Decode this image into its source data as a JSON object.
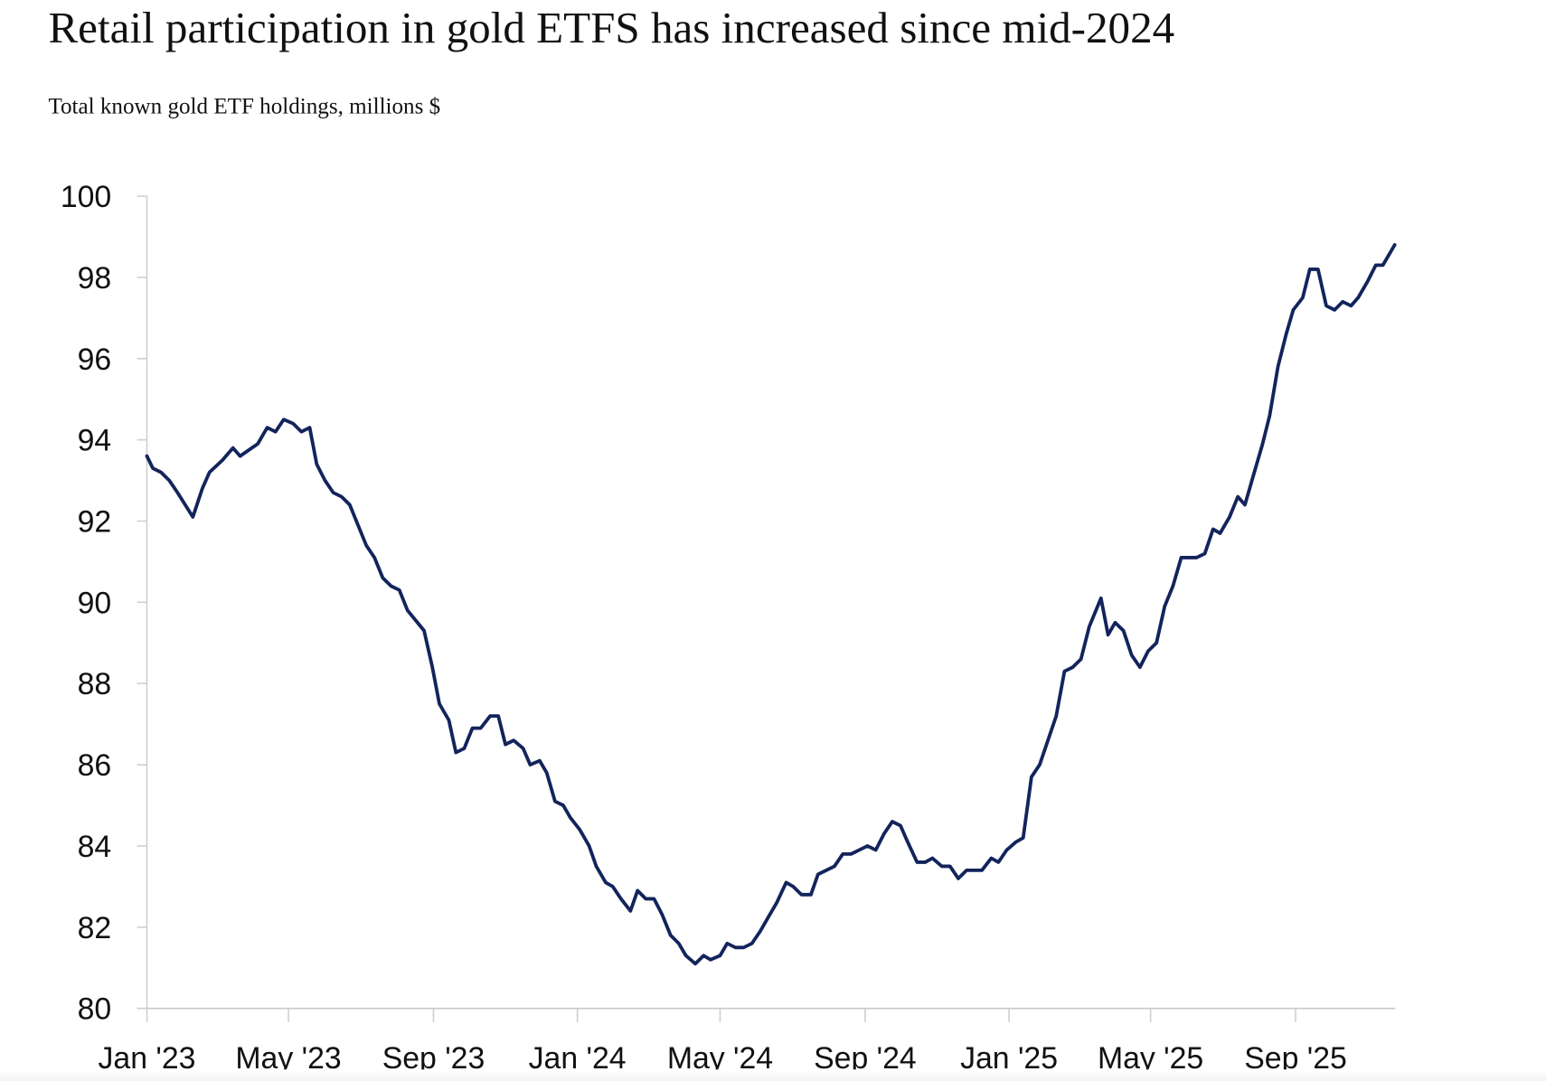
{
  "chart_data": {
    "type": "line",
    "title": "Retail participation in gold ETFS has increased since mid-2024",
    "subtitle": "Total known gold ETF holdings, millions $",
    "xlabel": "",
    "ylabel": "",
    "ylim": [
      80,
      100
    ],
    "yticks": [
      "100",
      "98",
      "96",
      "94",
      "92",
      "90",
      "88",
      "86",
      "84",
      "82",
      "80"
    ],
    "xticks": [
      {
        "label": "Jan '23",
        "date": "2023-01-01"
      },
      {
        "label": "May '23",
        "date": "2023-05-01"
      },
      {
        "label": "Sep '23",
        "date": "2023-09-01"
      },
      {
        "label": "Jan '24",
        "date": "2024-01-01"
      },
      {
        "label": "May '24",
        "date": "2024-05-01"
      },
      {
        "label": "Sep '24",
        "date": "2024-09-01"
      },
      {
        "label": "Jan '25",
        "date": "2025-01-01"
      },
      {
        "label": "May '25",
        "date": "2025-05-01"
      },
      {
        "label": "Sep '25",
        "date": "2025-09-01"
      }
    ],
    "grid": false,
    "line_color": "#13245c",
    "series": [
      {
        "points": [
          [
            "2023-01-01",
            93.6
          ],
          [
            "2023-01-06",
            93.3
          ],
          [
            "2023-01-13",
            93.2
          ],
          [
            "2023-01-20",
            93.0
          ],
          [
            "2023-01-27",
            92.7
          ],
          [
            "2023-02-09",
            92.1
          ],
          [
            "2023-02-17",
            92.8
          ],
          [
            "2023-02-23",
            93.2
          ],
          [
            "2023-03-06",
            93.5
          ],
          [
            "2023-03-15",
            93.8
          ],
          [
            "2023-03-21",
            93.6
          ],
          [
            "2023-04-05",
            93.9
          ],
          [
            "2023-04-13",
            94.3
          ],
          [
            "2023-04-20",
            94.2
          ],
          [
            "2023-04-27",
            94.5
          ],
          [
            "2023-05-05",
            94.4
          ],
          [
            "2023-05-12",
            94.2
          ],
          [
            "2023-05-19",
            94.3
          ],
          [
            "2023-05-25",
            93.4
          ],
          [
            "2023-06-01",
            93.0
          ],
          [
            "2023-06-08",
            92.7
          ],
          [
            "2023-06-15",
            92.6
          ],
          [
            "2023-06-22",
            92.4
          ],
          [
            "2023-06-29",
            91.9
          ],
          [
            "2023-07-06",
            91.4
          ],
          [
            "2023-07-13",
            91.1
          ],
          [
            "2023-07-20",
            90.6
          ],
          [
            "2023-07-27",
            90.4
          ],
          [
            "2023-08-03",
            90.3
          ],
          [
            "2023-08-10",
            89.8
          ],
          [
            "2023-08-24",
            89.3
          ],
          [
            "2023-08-31",
            88.4
          ],
          [
            "2023-09-06",
            87.5
          ],
          [
            "2023-09-14",
            87.1
          ],
          [
            "2023-09-20",
            86.3
          ],
          [
            "2023-09-27",
            86.4
          ],
          [
            "2023-10-04",
            86.9
          ],
          [
            "2023-10-11",
            86.9
          ],
          [
            "2023-10-19",
            87.2
          ],
          [
            "2023-10-26",
            87.2
          ],
          [
            "2023-11-01",
            86.5
          ],
          [
            "2023-11-08",
            86.6
          ],
          [
            "2023-11-16",
            86.4
          ],
          [
            "2023-11-22",
            86.0
          ],
          [
            "2023-11-30",
            86.1
          ],
          [
            "2023-12-06",
            85.8
          ],
          [
            "2023-12-13",
            85.1
          ],
          [
            "2023-12-20",
            85.0
          ],
          [
            "2023-12-26",
            84.7
          ],
          [
            "2024-01-03",
            84.4
          ],
          [
            "2024-01-11",
            84.0
          ],
          [
            "2024-01-17",
            83.5
          ],
          [
            "2024-01-25",
            83.1
          ],
          [
            "2024-01-31",
            83.0
          ],
          [
            "2024-02-07",
            82.7
          ],
          [
            "2024-02-15",
            82.4
          ],
          [
            "2024-02-21",
            82.9
          ],
          [
            "2024-02-28",
            82.7
          ],
          [
            "2024-03-06",
            82.7
          ],
          [
            "2024-03-13",
            82.3
          ],
          [
            "2024-03-20",
            81.8
          ],
          [
            "2024-03-27",
            81.6
          ],
          [
            "2024-04-02",
            81.3
          ],
          [
            "2024-04-10",
            81.1
          ],
          [
            "2024-04-17",
            81.3
          ],
          [
            "2024-04-23",
            81.2
          ],
          [
            "2024-05-01",
            81.3
          ],
          [
            "2024-05-07",
            81.6
          ],
          [
            "2024-05-14",
            81.5
          ],
          [
            "2024-05-21",
            81.5
          ],
          [
            "2024-05-28",
            81.6
          ],
          [
            "2024-06-04",
            81.9
          ],
          [
            "2024-06-12",
            82.3
          ],
          [
            "2024-06-18",
            82.6
          ],
          [
            "2024-06-26",
            83.1
          ],
          [
            "2024-07-02",
            83.0
          ],
          [
            "2024-07-09",
            82.8
          ],
          [
            "2024-07-17",
            82.8
          ],
          [
            "2024-07-23",
            83.3
          ],
          [
            "2024-07-30",
            83.4
          ],
          [
            "2024-08-06",
            83.5
          ],
          [
            "2024-08-13",
            83.8
          ],
          [
            "2024-08-20",
            83.8
          ],
          [
            "2024-08-27",
            83.9
          ],
          [
            "2024-09-03",
            84.0
          ],
          [
            "2024-09-10",
            83.9
          ],
          [
            "2024-09-17",
            84.3
          ],
          [
            "2024-09-24",
            84.6
          ],
          [
            "2024-10-01",
            84.5
          ],
          [
            "2024-10-07",
            84.1
          ],
          [
            "2024-10-15",
            83.6
          ],
          [
            "2024-10-22",
            83.6
          ],
          [
            "2024-10-28",
            83.7
          ],
          [
            "2024-11-05",
            83.5
          ],
          [
            "2024-11-12",
            83.5
          ],
          [
            "2024-11-19",
            83.2
          ],
          [
            "2024-11-26",
            83.4
          ],
          [
            "2024-12-02",
            83.4
          ],
          [
            "2024-12-09",
            83.4
          ],
          [
            "2024-12-17",
            83.7
          ],
          [
            "2024-12-23",
            83.6
          ],
          [
            "2024-12-30",
            83.9
          ],
          [
            "2025-01-07",
            84.1
          ],
          [
            "2025-01-13",
            84.2
          ],
          [
            "2025-01-20",
            85.7
          ],
          [
            "2025-01-27",
            86.0
          ],
          [
            "2025-02-03",
            86.6
          ],
          [
            "2025-02-10",
            87.2
          ],
          [
            "2025-02-17",
            88.3
          ],
          [
            "2025-02-24",
            88.4
          ],
          [
            "2025-03-03",
            88.6
          ],
          [
            "2025-03-10",
            89.4
          ],
          [
            "2025-03-20",
            90.1
          ],
          [
            "2025-03-26",
            89.2
          ],
          [
            "2025-04-01",
            89.5
          ],
          [
            "2025-04-08",
            89.3
          ],
          [
            "2025-04-15",
            88.7
          ],
          [
            "2025-04-22",
            88.4
          ],
          [
            "2025-04-29",
            88.8
          ],
          [
            "2025-05-06",
            89.0
          ],
          [
            "2025-05-13",
            89.9
          ],
          [
            "2025-05-20",
            90.4
          ],
          [
            "2025-05-27",
            91.1
          ],
          [
            "2025-06-03",
            91.1
          ],
          [
            "2025-06-09",
            91.1
          ],
          [
            "2025-06-16",
            91.2
          ],
          [
            "2025-06-23",
            91.8
          ],
          [
            "2025-06-29",
            91.7
          ],
          [
            "2025-07-07",
            92.1
          ],
          [
            "2025-07-14",
            92.6
          ],
          [
            "2025-07-20",
            92.4
          ],
          [
            "2025-07-27",
            93.1
          ],
          [
            "2025-08-04",
            93.9
          ],
          [
            "2025-08-10",
            94.6
          ],
          [
            "2025-08-17",
            95.8
          ],
          [
            "2025-08-24",
            96.6
          ],
          [
            "2025-08-30",
            97.2
          ],
          [
            "2025-09-07",
            97.5
          ],
          [
            "2025-09-13",
            98.2
          ],
          [
            "2025-09-20",
            98.2
          ],
          [
            "2025-09-27",
            97.3
          ],
          [
            "2025-10-04",
            97.2
          ],
          [
            "2025-10-11",
            97.4
          ],
          [
            "2025-10-18",
            97.3
          ],
          [
            "2025-10-24",
            97.5
          ],
          [
            "2025-11-01",
            97.9
          ],
          [
            "2025-11-08",
            98.3
          ],
          [
            "2025-11-14",
            98.3
          ],
          [
            "2025-11-20",
            98.6
          ],
          [
            "2025-11-24",
            98.8
          ]
        ]
      }
    ]
  }
}
